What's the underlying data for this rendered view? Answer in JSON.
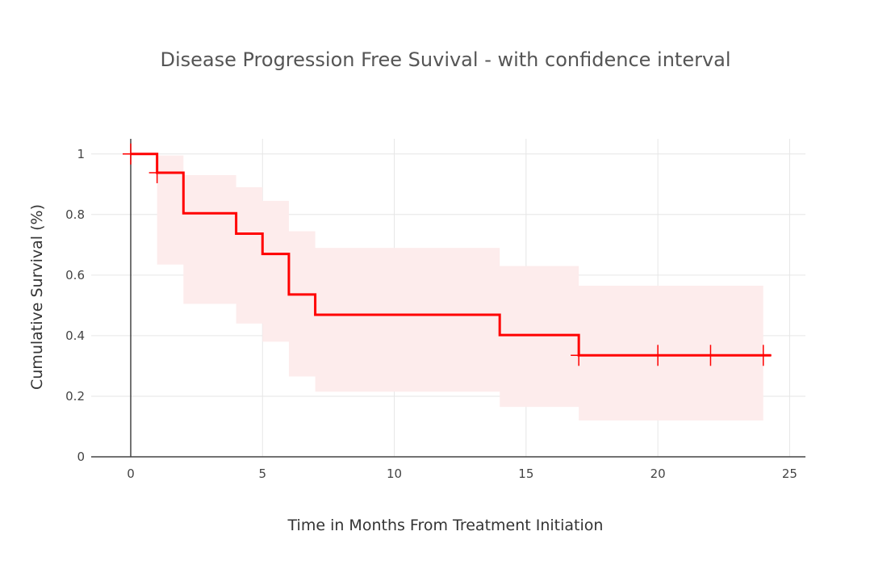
{
  "chart_data": {
    "type": "line",
    "title": "Disease Progression Free Suvival - with confidence interval",
    "xlabel": "Time in Months From Treatment Initiation",
    "ylabel": "Cumulative Survival (%)",
    "xlim": [
      -1.5,
      25.6
    ],
    "ylim": [
      0,
      1.05
    ],
    "x_ticks": [
      0,
      5,
      10,
      15,
      20,
      25
    ],
    "x_tick_labels": [
      "0",
      "5",
      "10",
      "15",
      "20",
      "25"
    ],
    "y_ticks": [
      0,
      0.2,
      0.4,
      0.6,
      0.8,
      1
    ],
    "y_tick_labels": [
      "0",
      "0.2",
      "0.4",
      "0.6",
      "0.8",
      "1"
    ],
    "grid": true,
    "legend": "none",
    "colors": {
      "survival_line": "#ff0000",
      "confidence_band": "#fdecec",
      "grid": "#e6e6e6",
      "axis": "#444444"
    },
    "survival_steps": {
      "x": [
        0,
        1,
        2,
        4,
        5,
        6,
        7,
        14,
        17,
        24.3
      ],
      "y": [
        1.0,
        0.938,
        0.804,
        0.737,
        0.67,
        0.536,
        0.469,
        0.402,
        0.335,
        0.335
      ]
    },
    "confidence_interval": {
      "x": [
        1,
        2,
        4,
        5,
        6,
        7,
        14,
        17,
        24
      ],
      "upper": [
        0.995,
        0.93,
        0.89,
        0.845,
        0.745,
        0.69,
        0.63,
        0.565,
        0.565
      ],
      "lower": [
        0.635,
        0.505,
        0.44,
        0.38,
        0.265,
        0.215,
        0.165,
        0.12,
        0.12
      ]
    },
    "censored": {
      "x": [
        0,
        1,
        17,
        20,
        22,
        24
      ],
      "y": [
        1.0,
        0.938,
        0.335,
        0.335,
        0.335,
        0.335
      ]
    }
  }
}
